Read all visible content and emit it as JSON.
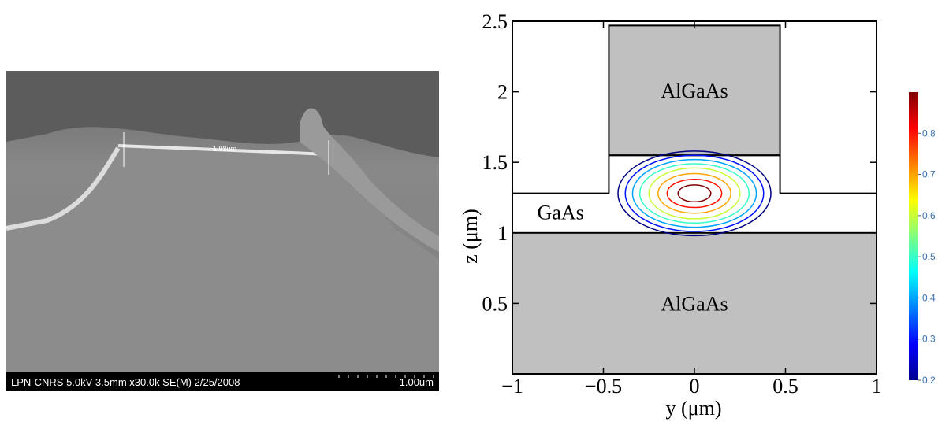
{
  "sem_image": {
    "info": "LPN-CNRS 5.0kV 3.5mm x30.0k SE(M) 2/25/2008",
    "scale_label": "1.00um",
    "measurement": "1.98um"
  },
  "chart_data": {
    "type": "contour",
    "xlabel": "y (μm)",
    "ylabel": "z (μm)",
    "xlim": [
      -1,
      1
    ],
    "ylim": [
      0,
      2.5
    ],
    "xticks": [
      {
        "value": -1,
        "label": "−1"
      },
      {
        "value": -0.5,
        "label": "−0.5"
      },
      0,
      0.5,
      1
    ],
    "yticks": [
      0.5,
      1,
      1.5,
      2,
      2.5
    ],
    "regions": [
      {
        "label": "AlGaAs",
        "color": "#c0c0c0",
        "y": [
          -0.47,
          0.47
        ],
        "z": [
          1.55,
          2.47
        ]
      },
      {
        "label": "GaAs",
        "points": [
          [
            -1,
            1.28
          ],
          [
            -0.47,
            1.28
          ],
          [
            -0.47,
            1.55
          ],
          [
            0.47,
            1.55
          ],
          [
            0.47,
            1.28
          ],
          [
            1,
            1.28
          ]
        ]
      },
      {
        "label": "AlGaAs",
        "color": "#c0c0c0",
        "y": [
          -1,
          1
        ],
        "z": [
          0,
          1
        ]
      }
    ],
    "contour_center": [
      0,
      1.28
    ],
    "contours": [
      {
        "level": 0.2,
        "ry": 0.42,
        "rz": 0.3
      },
      {
        "level": 0.3,
        "ry": 0.38,
        "rz": 0.27
      },
      {
        "level": 0.4,
        "ry": 0.34,
        "rz": 0.24
      },
      {
        "level": 0.5,
        "ry": 0.3,
        "rz": 0.21
      },
      {
        "level": 0.6,
        "ry": 0.25,
        "rz": 0.18
      },
      {
        "level": 0.7,
        "ry": 0.2,
        "rz": 0.14
      },
      {
        "level": 0.8,
        "ry": 0.15,
        "rz": 0.1
      },
      {
        "level": 0.9,
        "ry": 0.09,
        "rz": 0.06
      }
    ],
    "clim": [
      0.2,
      0.9
    ],
    "cticks": [
      0.2,
      0.3,
      0.4,
      0.5,
      0.6,
      0.7,
      0.8
    ]
  }
}
